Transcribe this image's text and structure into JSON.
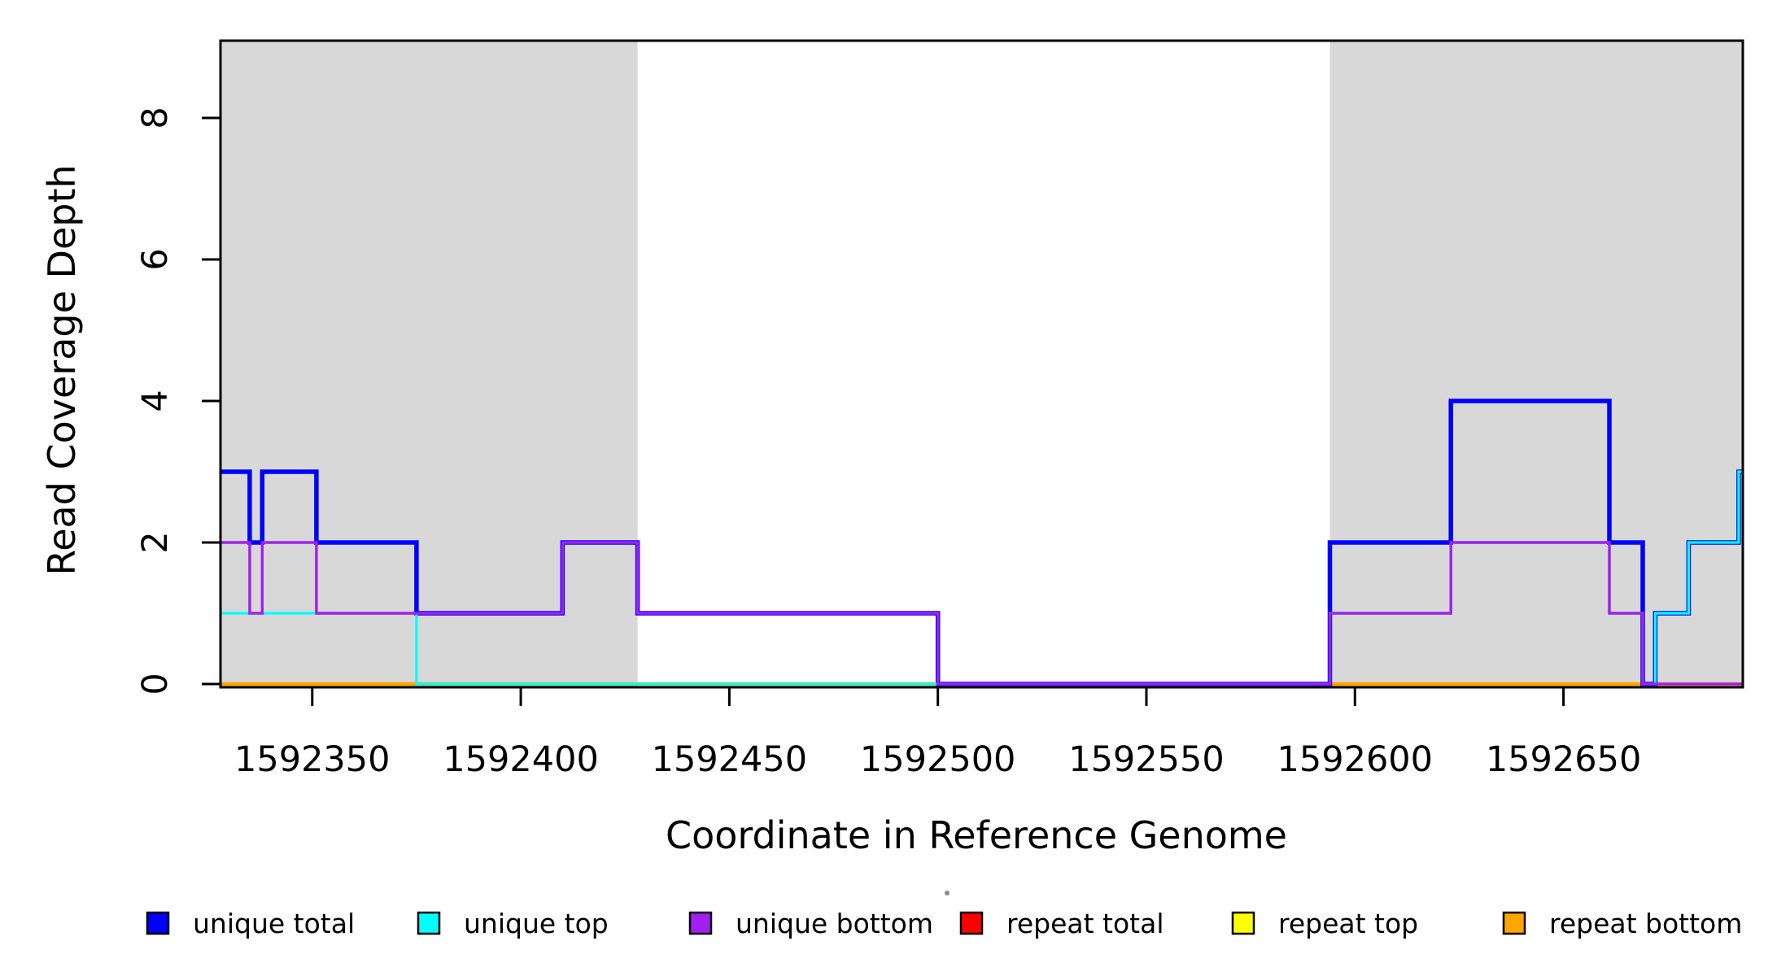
{
  "figure": {
    "background": "#ffffff",
    "border_color": "#000000"
  },
  "chart_data": {
    "type": "line",
    "subtype": "step-coverage",
    "title": "",
    "xlabel": "Coordinate in Reference Genome",
    "ylabel": "Read Coverage Depth",
    "xlim": [
      1592328,
      1592693
    ],
    "ylim": [
      0,
      9.1
    ],
    "x_ticks": [
      1592350,
      1592400,
      1592450,
      1592500,
      1592550,
      1592600,
      1592650
    ],
    "y_ticks": [
      0,
      2,
      4,
      6,
      8
    ],
    "grid": false,
    "legend_position": "bottom",
    "shade_color": "#d8d8d8",
    "shaded_regions": [
      {
        "start": 1592328,
        "end": 1592428
      },
      {
        "start": 1592594,
        "end": 1592693
      }
    ],
    "series": [
      {
        "name": "repeat total",
        "color": "#ff0000",
        "width": 4,
        "points": [
          [
            1592328,
            0
          ]
        ]
      },
      {
        "name": "repeat top",
        "color": "#ffff00",
        "width": 4,
        "points": [
          [
            1592328,
            0
          ]
        ]
      },
      {
        "name": "repeat bottom",
        "color": "#ffa500",
        "width": 4.5,
        "points": [
          [
            1592328,
            0
          ]
        ]
      },
      {
        "name": "unique total",
        "color": "#0000ff",
        "width": 5.5,
        "points": [
          [
            1592328,
            3
          ],
          [
            1592335,
            2
          ],
          [
            1592338,
            3
          ],
          [
            1592351,
            2
          ],
          [
            1592375,
            1
          ],
          [
            1592410,
            2
          ],
          [
            1592428,
            1
          ],
          [
            1592500,
            0
          ],
          [
            1592594,
            2
          ],
          [
            1592623,
            4
          ],
          [
            1592661,
            2
          ],
          [
            1592669,
            0
          ],
          [
            1592672,
            1
          ],
          [
            1592680,
            2
          ],
          [
            1592692,
            3
          ]
        ]
      },
      {
        "name": "unique top",
        "color": "#00ffff",
        "width": 3.2,
        "points": [
          [
            1592328,
            1
          ],
          [
            1592375,
            0
          ],
          [
            1592594,
            1
          ],
          [
            1592623,
            2
          ],
          [
            1592661,
            1
          ],
          [
            1592669,
            0
          ],
          [
            1592672,
            1
          ],
          [
            1592680,
            2
          ],
          [
            1592692,
            3
          ]
        ]
      },
      {
        "name": "unique bottom",
        "color": "#a020f0",
        "width": 3.4,
        "points": [
          [
            1592328,
            2
          ],
          [
            1592335,
            1
          ],
          [
            1592338,
            2
          ],
          [
            1592351,
            1
          ],
          [
            1592410,
            2
          ],
          [
            1592428,
            1
          ],
          [
            1592500,
            0
          ],
          [
            1592594,
            1
          ],
          [
            1592623,
            2
          ],
          [
            1592661,
            1
          ],
          [
            1592669,
            0
          ]
        ]
      }
    ],
    "legend": {
      "entries": [
        {
          "label": "unique total",
          "color": "#0000ff"
        },
        {
          "label": "unique top",
          "color": "#00ffff"
        },
        {
          "label": "unique bottom",
          "color": "#a020f0"
        },
        {
          "label": "repeat total",
          "color": "#ff0000"
        },
        {
          "label": "repeat top",
          "color": "#ffff00"
        },
        {
          "label": "repeat bottom",
          "color": "#ffa500"
        }
      ]
    }
  }
}
